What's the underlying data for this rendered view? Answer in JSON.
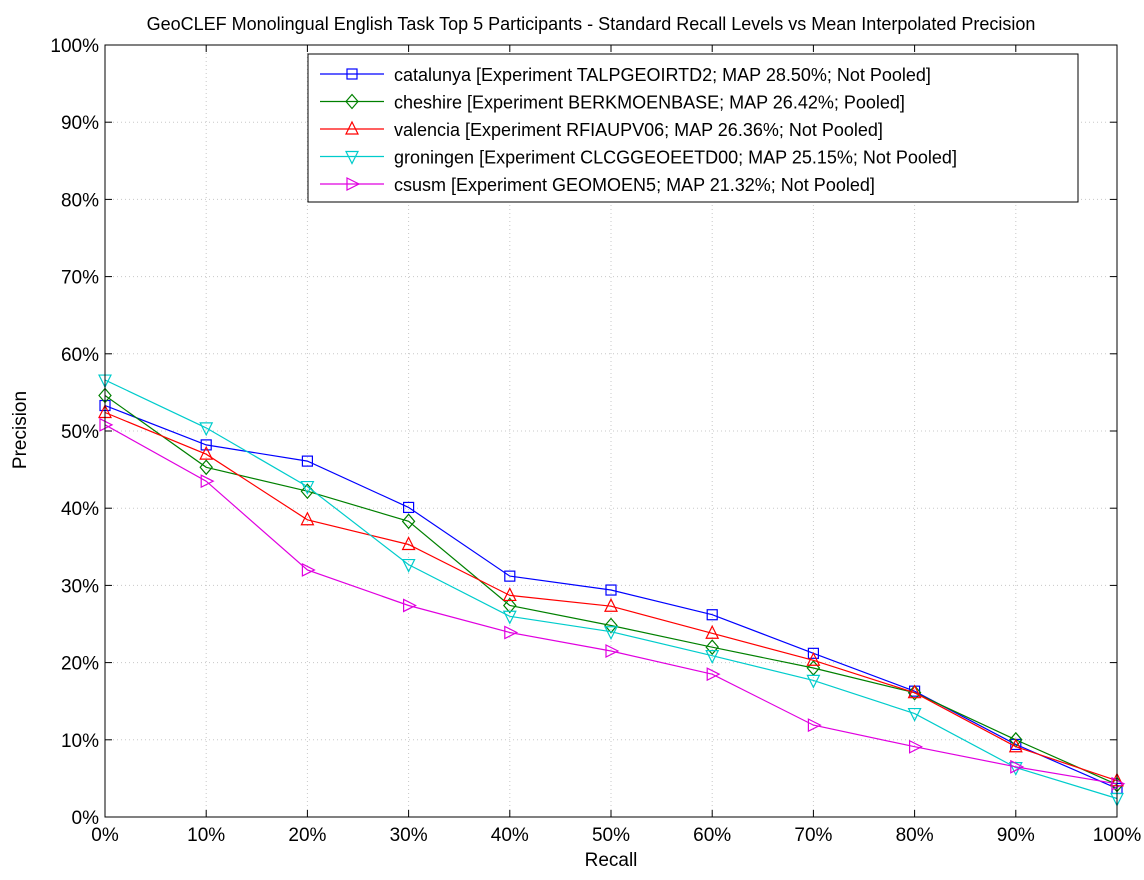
{
  "chart_data": {
    "type": "line",
    "title": "GeoCLEF Monolingual English Task Top 5 Participants - Standard Recall Levels vs Mean Interpolated Precision",
    "xlabel": "Recall",
    "ylabel": "Precision",
    "xlim": [
      0,
      100
    ],
    "ylim": [
      0,
      100
    ],
    "grid": true,
    "legend_position": "top-right",
    "x": [
      0,
      10,
      20,
      30,
      40,
      50,
      60,
      70,
      80,
      90,
      100
    ],
    "x_tick_labels": [
      "0%",
      "10%",
      "20%",
      "30%",
      "40%",
      "50%",
      "60%",
      "70%",
      "80%",
      "90%",
      "100%"
    ],
    "y_ticks": [
      0,
      10,
      20,
      30,
      40,
      50,
      60,
      70,
      80,
      90,
      100
    ],
    "y_tick_labels": [
      "0%",
      "10%",
      "20%",
      "30%",
      "40%",
      "50%",
      "60%",
      "70%",
      "80%",
      "90%",
      "100%"
    ],
    "series": [
      {
        "name": "catalunya [Experiment TALPGEOIRTD2; MAP 28.50%; Not Pooled]",
        "color": "#0000ff",
        "marker": "square",
        "values": [
          53.3,
          48.2,
          46.1,
          40.1,
          31.2,
          29.4,
          26.2,
          21.2,
          16.3,
          9.4,
          3.7
        ]
      },
      {
        "name": "cheshire [Experiment BERKMOENBASE; MAP 26.42%; Pooled]",
        "color": "#008000",
        "marker": "diamond",
        "values": [
          54.6,
          45.3,
          42.2,
          38.3,
          27.4,
          24.8,
          22.0,
          19.3,
          16.1,
          10.0,
          4.2
        ]
      },
      {
        "name": "valencia [Experiment RFIAUPV06; MAP 26.36%; Not Pooled]",
        "color": "#ff0000",
        "marker": "triangle-up",
        "values": [
          52.4,
          47.0,
          38.5,
          35.3,
          28.7,
          27.3,
          23.8,
          20.3,
          16.1,
          9.1,
          4.7
        ]
      },
      {
        "name": "groningen [Experiment CLCGGEOEETD00; MAP 25.15%; Not Pooled]",
        "color": "#00cccc",
        "marker": "triangle-down",
        "values": [
          56.6,
          50.4,
          42.8,
          32.7,
          26.0,
          24.0,
          20.9,
          17.7,
          13.4,
          6.4,
          2.4
        ]
      },
      {
        "name": "csusm [Experiment GEOMOEN5; MAP 21.32%; Not Pooled]",
        "color": "#e000e0",
        "marker": "triangle-right",
        "values": [
          50.8,
          43.5,
          32.0,
          27.4,
          23.9,
          21.5,
          18.5,
          11.9,
          9.1,
          6.5,
          4.3
        ]
      }
    ]
  }
}
